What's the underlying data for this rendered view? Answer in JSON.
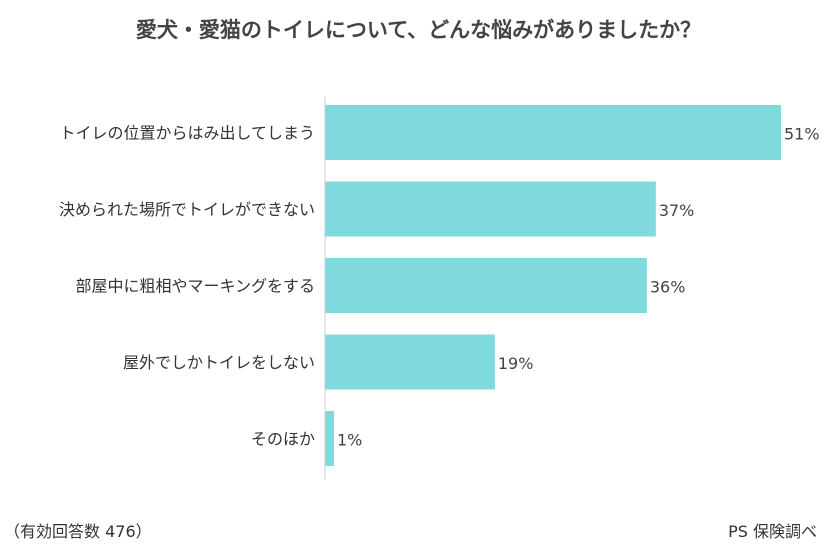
{
  "chart_data": {
    "type": "bar",
    "orientation": "horizontal",
    "title": "愛犬・愛猫のトイレについて、どんな悩みがありましたか？",
    "categories": [
      "トイレの位置からはみ出してしまう",
      "決められた場所でトイレができない",
      "部屋中に粗相やマーキングをする",
      "屋外でしかトイレをしない",
      "そのほか"
    ],
    "values": [
      51,
      37,
      36,
      19,
      1
    ],
    "value_suffix": "%",
    "xlim": [
      0,
      51
    ],
    "grid": false,
    "bar_color": "#80d9dc"
  },
  "footer": {
    "sample_note": "（有効回答数 476）",
    "source": "PS 保険調べ"
  }
}
